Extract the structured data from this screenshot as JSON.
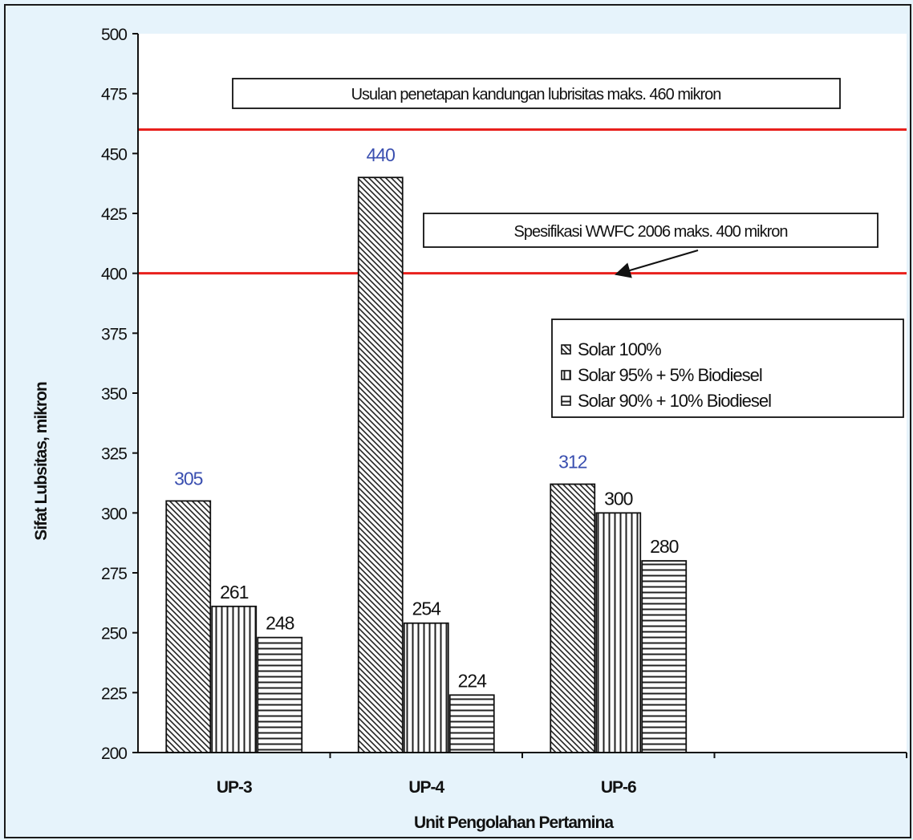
{
  "chart_data": {
    "type": "bar",
    "title": "",
    "xlabel": "Unit Pengolahan Pertamina",
    "ylabel": "Sifat Lubsitas, mikron",
    "categories": [
      "UP-3",
      "UP-4",
      "UP-6"
    ],
    "ylim": [
      200,
      500
    ],
    "yticks": [
      200,
      225,
      250,
      275,
      300,
      325,
      350,
      375,
      400,
      425,
      450,
      475,
      500
    ],
    "grid": false,
    "legend_position": "right",
    "series": [
      {
        "name": "Solar 100%",
        "values": [
          305,
          440,
          312
        ],
        "pattern": "diagonal"
      },
      {
        "name": "Solar 95% + 5% Biodiesel",
        "values": [
          261,
          254,
          300
        ],
        "pattern": "vertical"
      },
      {
        "name": "Solar 90% + 10% Biodiesel",
        "values": [
          248,
          224,
          280
        ],
        "pattern": "horizontal"
      }
    ],
    "data_label_colors": {
      "first_series": "#3a4fb0",
      "other_series": "#111111"
    },
    "reference_lines": [
      {
        "value": 460,
        "color": "#e8201c",
        "label": "Usulan penetapan kandungan lubrisitas maks. 460 mikron"
      },
      {
        "value": 400,
        "color": "#e8201c",
        "label": "Spesifikasi WWFC 2006 maks. 400 mikron"
      }
    ]
  }
}
